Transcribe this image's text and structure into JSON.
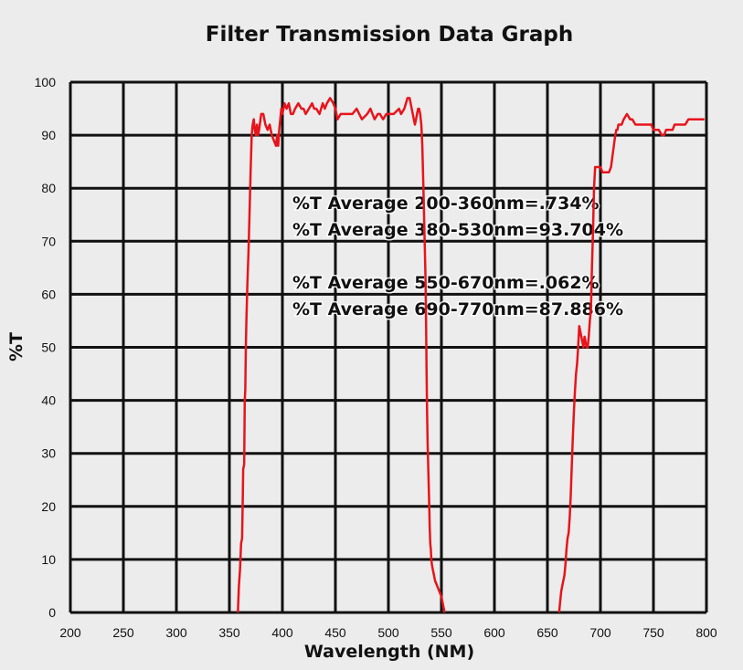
{
  "chart_data": {
    "type": "line",
    "title": "Filter Transmission Data Graph",
    "xlabel": "Wavelength (NM)",
    "ylabel": "%T",
    "xlim": [
      200,
      800
    ],
    "ylim": [
      0,
      100
    ],
    "x_ticks": [
      200,
      250,
      300,
      350,
      400,
      450,
      500,
      550,
      600,
      650,
      700,
      750,
      800
    ],
    "y_ticks": [
      0,
      10,
      20,
      30,
      40,
      50,
      60,
      70,
      80,
      90,
      100
    ],
    "grid": true,
    "line_color": "#e8141c",
    "annotations": [
      "%T Average 200-360nm=.734%",
      "%T Average 380-530nm=93.704%",
      "%T Average 550-670nm=.062%",
      "%T Average 690-770nm=87.886%"
    ],
    "series": [
      {
        "x": [
          358,
          359,
          360,
          361,
          362,
          362.5,
          363,
          364,
          364.5,
          365,
          365.5,
          366,
          367,
          368,
          369,
          370,
          371,
          372,
          373,
          374,
          375,
          376,
          377,
          378,
          380,
          382,
          384,
          386,
          388,
          390,
          392,
          394,
          395,
          396,
          397,
          398,
          399,
          400,
          401,
          402,
          404,
          406,
          408,
          410,
          412,
          415,
          418,
          420,
          422,
          425,
          428,
          430,
          432,
          435,
          438,
          440,
          442,
          445,
          448,
          450,
          452,
          455,
          458,
          460,
          463,
          466,
          470,
          475,
          480,
          483,
          485,
          487,
          490,
          492,
          495,
          498,
          500,
          505,
          510,
          512,
          515,
          518,
          520,
          522,
          524,
          525,
          526,
          527,
          528,
          529,
          530,
          531,
          532,
          533,
          534,
          535,
          535.5,
          536,
          536.5,
          537,
          537.5,
          538,
          538.5,
          539,
          539.5,
          540,
          540.5,
          541,
          542,
          543,
          544,
          546,
          548,
          550,
          552,
          553
        ],
        "y": [
          0,
          5,
          8,
          13,
          14,
          20,
          27,
          28,
          40,
          42,
          50,
          55,
          62,
          68,
          75,
          83,
          90,
          92,
          93,
          91,
          90,
          92,
          90,
          91,
          94,
          94,
          92,
          91,
          92,
          90,
          89,
          88,
          90,
          88,
          91,
          93,
          95,
          94,
          95,
          96,
          95,
          96,
          94,
          94,
          95,
          96,
          95,
          95,
          94,
          95,
          96,
          95,
          95,
          94,
          96,
          95,
          96,
          97,
          96,
          95,
          93,
          94,
          94,
          94,
          94,
          94,
          95,
          93,
          94,
          95,
          94,
          93,
          94,
          94,
          93,
          94,
          94,
          94,
          95,
          94,
          95,
          97,
          97,
          95,
          93,
          92,
          93,
          94,
          95,
          95,
          94,
          92,
          88,
          80,
          72,
          63,
          55,
          45,
          38,
          32,
          28,
          24,
          20,
          16,
          13,
          12,
          10,
          9,
          8,
          7,
          6,
          5,
          4,
          3,
          1,
          0
        ]
      },
      {
        "x": [
          661,
          662,
          663,
          664,
          665,
          666,
          667,
          668,
          669,
          670,
          671,
          672,
          673,
          674,
          675,
          676,
          677,
          678,
          679,
          680,
          681,
          682,
          683,
          684,
          685,
          686,
          687,
          688,
          689,
          690,
          691,
          692,
          693,
          694,
          695,
          697,
          700,
          702,
          705,
          708,
          710,
          712,
          714,
          715,
          716,
          717,
          718,
          720,
          722,
          725,
          728,
          730,
          733,
          735,
          738,
          740,
          743,
          745,
          748,
          750,
          752,
          755,
          758,
          760,
          762,
          765,
          768,
          770,
          773,
          775,
          778,
          780,
          783,
          785,
          788,
          790,
          793,
          796,
          798
        ],
        "y": [
          0,
          2,
          4,
          5,
          6,
          7,
          9,
          12,
          14,
          15,
          18,
          22,
          28,
          33,
          38,
          42,
          45,
          47,
          50,
          54,
          53,
          52,
          51,
          50,
          52,
          51,
          50,
          50,
          52,
          55,
          57,
          65,
          72,
          80,
          84,
          84,
          84,
          83,
          83,
          83,
          84,
          87,
          90,
          91,
          91,
          92,
          92,
          92,
          93,
          94,
          93,
          93,
          92,
          92,
          92,
          92,
          92,
          92,
          92,
          91,
          91,
          91,
          90,
          90,
          91,
          91,
          91,
          92,
          92,
          92,
          92,
          92,
          93,
          93,
          93,
          93,
          93,
          93,
          93
        ]
      }
    ]
  }
}
